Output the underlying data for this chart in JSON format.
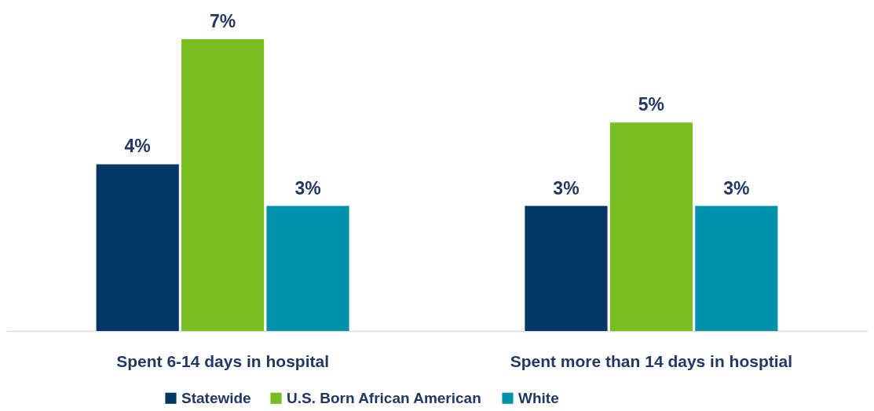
{
  "chart_data": {
    "type": "bar",
    "categories": [
      "Spent 6-14 days in hospital",
      "Spent more than 14 days in hosptial"
    ],
    "series": [
      {
        "name": "Statewide",
        "color": "#003764",
        "values": [
          4,
          3
        ],
        "value_labels": [
          "4%",
          "3%"
        ]
      },
      {
        "name": "U.S. Born African American",
        "color": "#78be21",
        "values": [
          7,
          5
        ],
        "value_labels": [
          "7%",
          "5%"
        ]
      },
      {
        "name": "White",
        "color": "#0092ab",
        "values": [
          3,
          3
        ],
        "value_labels": [
          "3%",
          "3%"
        ]
      }
    ],
    "legend": "bottom"
  }
}
